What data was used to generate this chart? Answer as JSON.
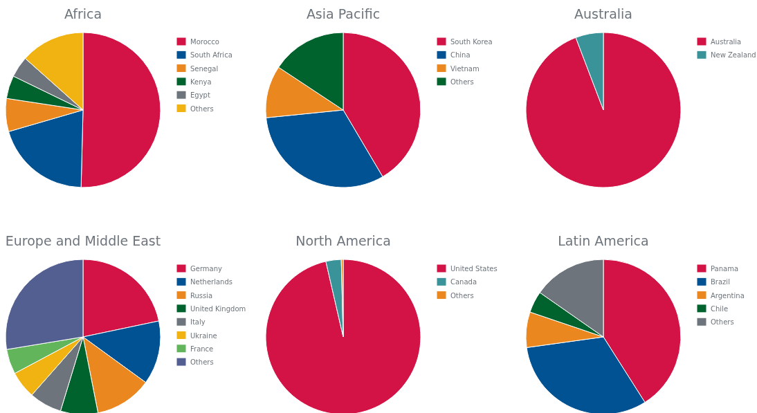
{
  "chart_data": [
    {
      "type": "pie",
      "title": "Africa",
      "legend": "right",
      "categories": [
        "Morocco",
        "South Africa",
        "Senegal",
        "Kenya",
        "Egypt",
        "Others"
      ],
      "values": [
        50.4,
        20.1,
        6.9,
        4.8,
        4.4,
        13.4
      ],
      "colors": [
        "#d31245",
        "#005293",
        "#ea871e",
        "#00622c",
        "#6d747b",
        "#f0b312"
      ]
    },
    {
      "type": "pie",
      "title": "Asia Pacific",
      "legend": "right",
      "categories": [
        "South Korea",
        "China",
        "Vietnam",
        "Others"
      ],
      "values": [
        41.5,
        31.9,
        10.9,
        15.7
      ],
      "colors": [
        "#d31245",
        "#005293",
        "#ea871e",
        "#00622c"
      ]
    },
    {
      "type": "pie",
      "title": "Australia",
      "legend": "right",
      "categories": [
        "Australia",
        "New Zealand"
      ],
      "values": [
        94.2,
        5.8
      ],
      "colors": [
        "#d31245",
        "#3a9399"
      ]
    },
    {
      "type": "pie",
      "title": "Europe and Middle East",
      "legend": "right",
      "categories": [
        "Germany",
        "Netherlands",
        "Russia",
        "United Kingdom",
        "Italy",
        "Ukraine",
        "France",
        "Others"
      ],
      "values": [
        21.7,
        13.3,
        11.9,
        7.8,
        6.8,
        5.7,
        5.2,
        27.6
      ],
      "colors": [
        "#d31245",
        "#005293",
        "#ea871e",
        "#00622c",
        "#6d747b",
        "#f0b312",
        "#62b55a",
        "#535f90"
      ]
    },
    {
      "type": "pie",
      "title": "North America",
      "legend": "right",
      "categories": [
        "United States",
        "Canada",
        "Others"
      ],
      "values": [
        96.4,
        3.2,
        0.4
      ],
      "colors": [
        "#d31245",
        "#3a9399",
        "#ea871e"
      ]
    },
    {
      "type": "pie",
      "title": "Latin America",
      "legend": "right",
      "categories": [
        "Panama",
        "Brazil",
        "Argentina",
        "Chile",
        "Others"
      ],
      "values": [
        41.0,
        31.8,
        7.4,
        4.5,
        15.3
      ],
      "colors": [
        "#d31245",
        "#005293",
        "#ea871e",
        "#00622c",
        "#6d747b"
      ]
    }
  ]
}
